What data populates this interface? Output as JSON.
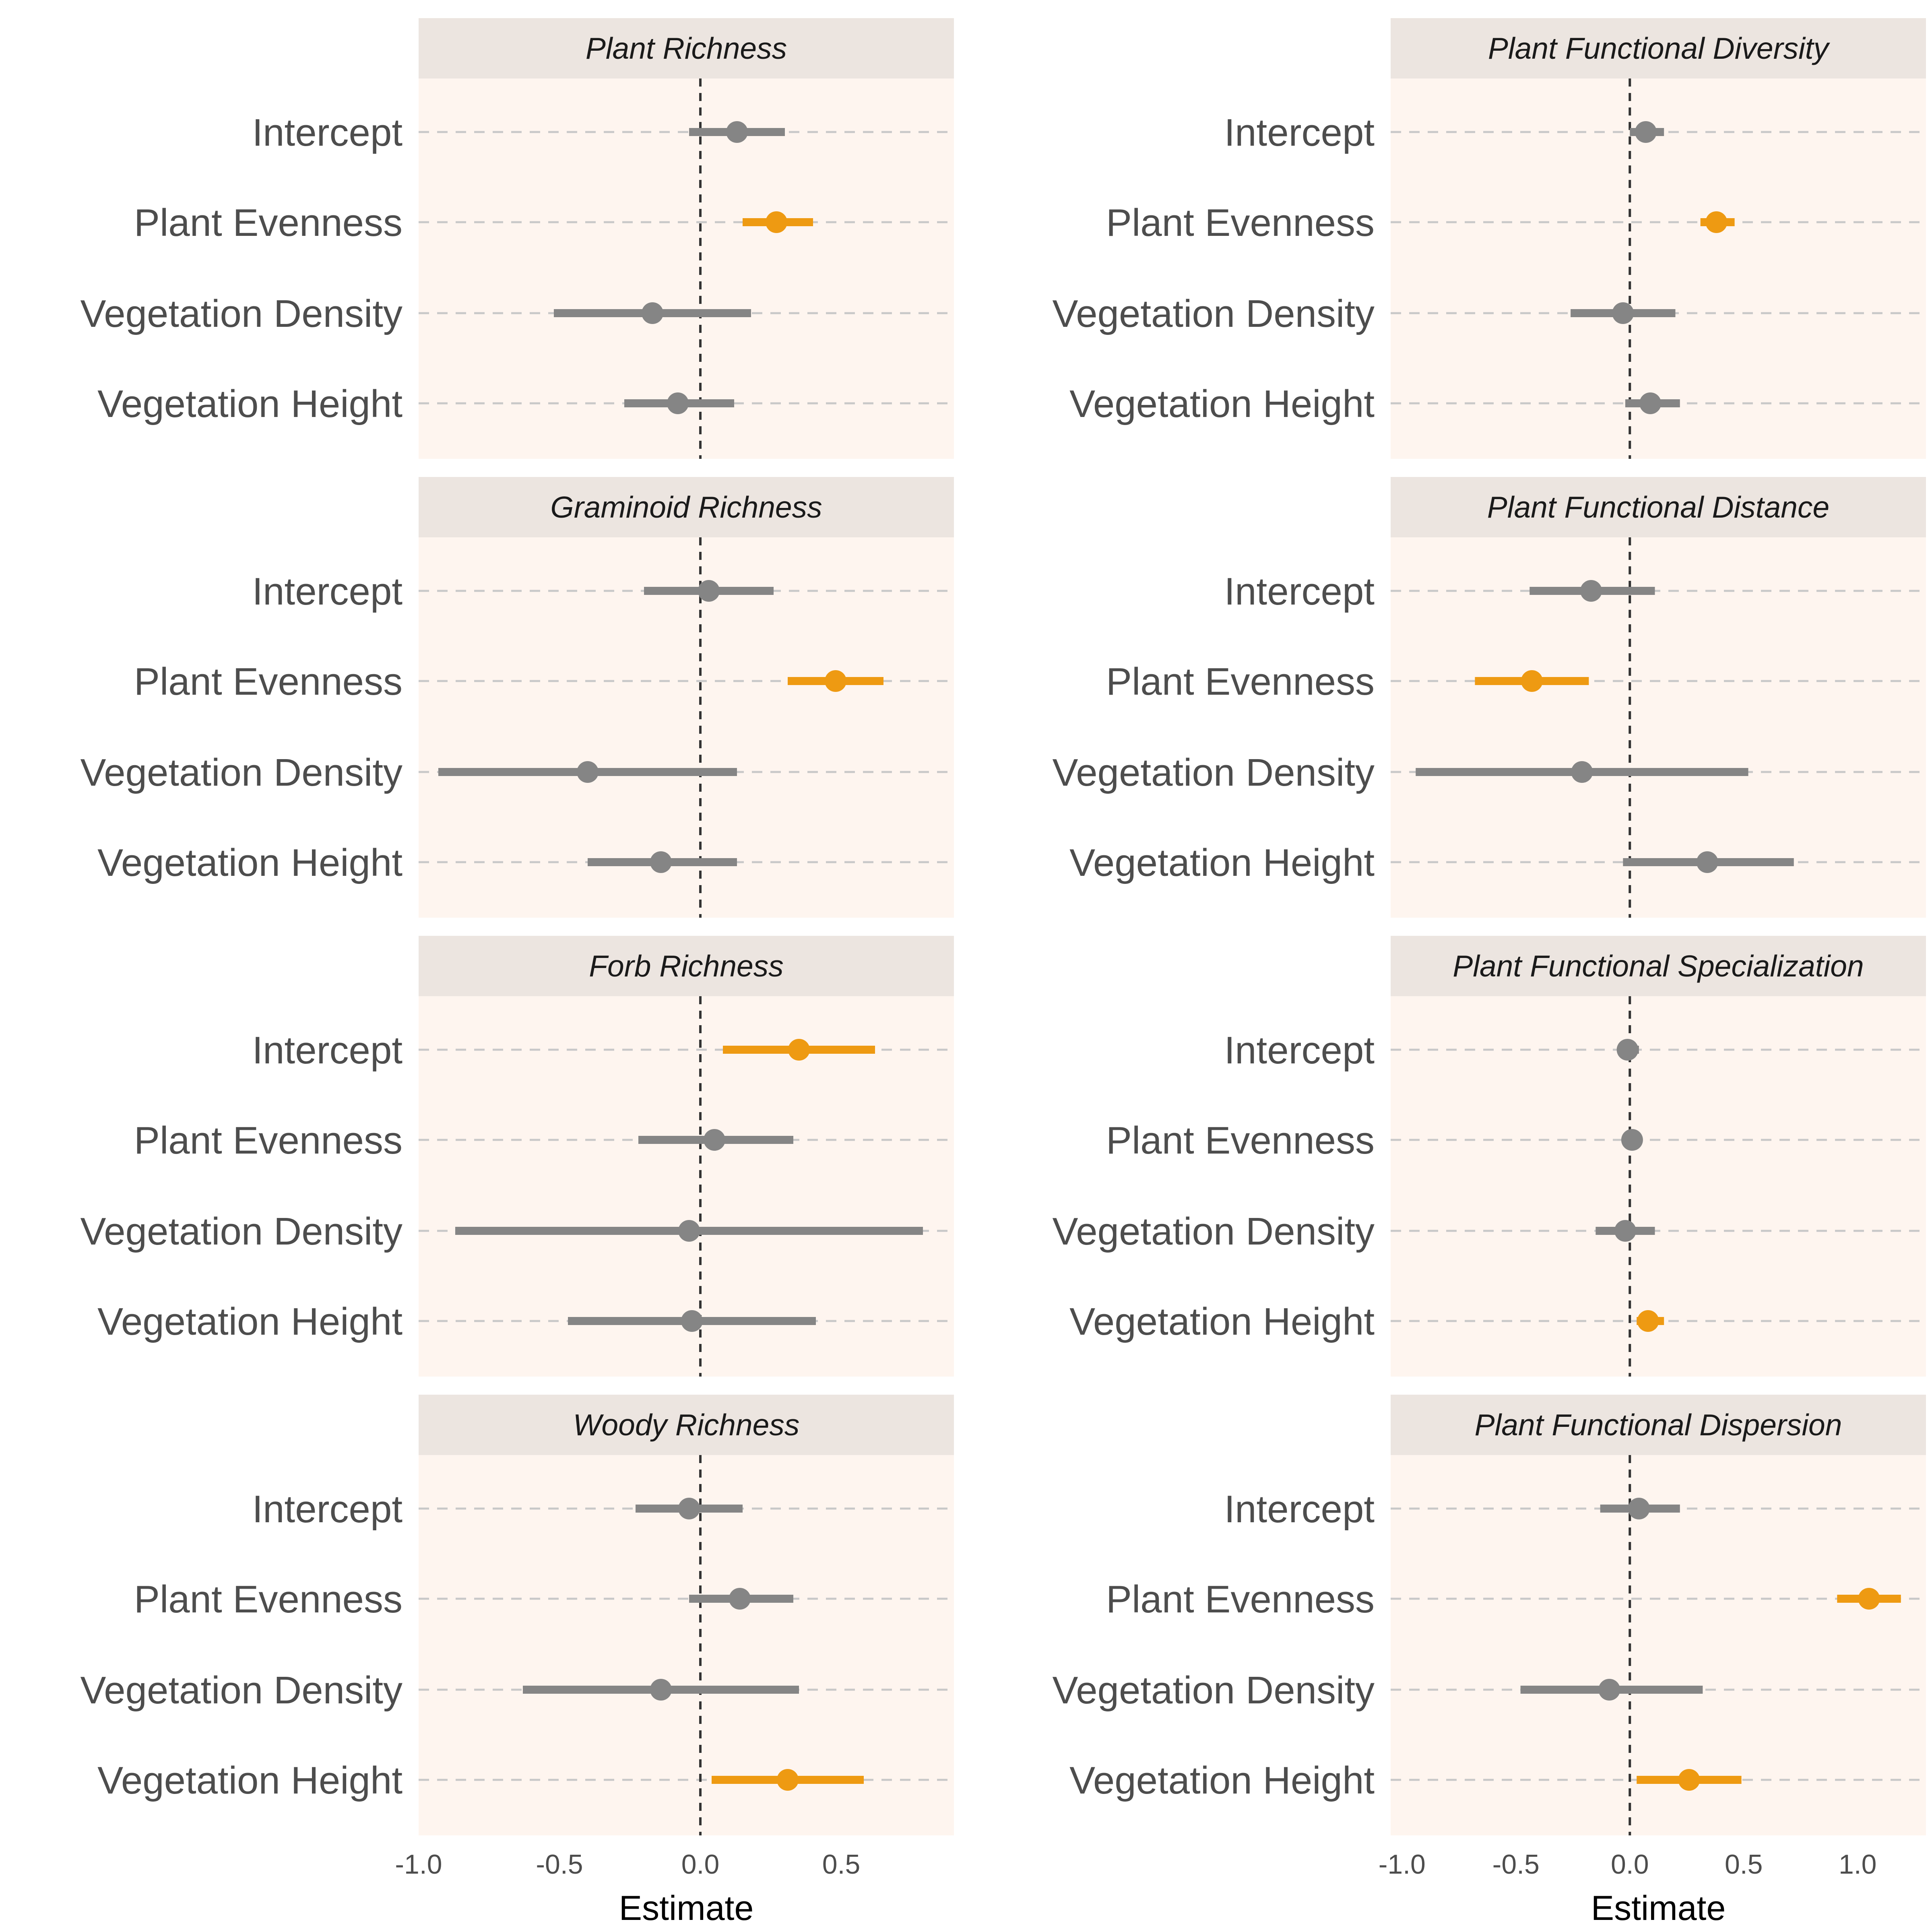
{
  "colors": {
    "panel_bg": "#FEF5EF",
    "strip_bg": "#ECE5E0",
    "nonsignificant": "#858585",
    "significant": "#EE9A12",
    "gridline": "#C8C8C8",
    "zero_line": "#333333"
  },
  "chart_data": {
    "type": "forest",
    "xlabel": "Estimate",
    "terms": [
      "Intercept",
      "Plant Evenness",
      "Vegetation Density",
      "Vegetation Height"
    ],
    "columns": [
      {
        "xlim": [
          -1.0,
          0.9
        ],
        "xticks": [
          -1.0,
          -0.5,
          0.0,
          0.5
        ],
        "xtick_labels": [
          "-1.0",
          "-0.5",
          "0.0",
          "0.5"
        ],
        "panels": [
          {
            "title": "Plant Richness",
            "rows": [
              {
                "term": "Intercept",
                "estimate": 0.13,
                "lower": -0.04,
                "upper": 0.3,
                "significant": false
              },
              {
                "term": "Plant Evenness",
                "estimate": 0.27,
                "lower": 0.15,
                "upper": 0.4,
                "significant": true
              },
              {
                "term": "Vegetation Density",
                "estimate": -0.17,
                "lower": -0.52,
                "upper": 0.18,
                "significant": false
              },
              {
                "term": "Vegetation Height",
                "estimate": -0.08,
                "lower": -0.27,
                "upper": 0.12,
                "significant": false
              }
            ]
          },
          {
            "title": "Graminoid Richness",
            "rows": [
              {
                "term": "Intercept",
                "estimate": 0.03,
                "lower": -0.2,
                "upper": 0.26,
                "significant": false
              },
              {
                "term": "Plant Evenness",
                "estimate": 0.48,
                "lower": 0.31,
                "upper": 0.65,
                "significant": true
              },
              {
                "term": "Vegetation Density",
                "estimate": -0.4,
                "lower": -0.93,
                "upper": 0.13,
                "significant": false
              },
              {
                "term": "Vegetation Height",
                "estimate": -0.14,
                "lower": -0.4,
                "upper": 0.13,
                "significant": false
              }
            ]
          },
          {
            "title": "Forb Richness",
            "rows": [
              {
                "term": "Intercept",
                "estimate": 0.35,
                "lower": 0.08,
                "upper": 0.62,
                "significant": true
              },
              {
                "term": "Plant Evenness",
                "estimate": 0.05,
                "lower": -0.22,
                "upper": 0.33,
                "significant": false
              },
              {
                "term": "Vegetation Density",
                "estimate": -0.04,
                "lower": -0.87,
                "upper": 0.79,
                "significant": false
              },
              {
                "term": "Vegetation Height",
                "estimate": -0.03,
                "lower": -0.47,
                "upper": 0.41,
                "significant": false
              }
            ]
          },
          {
            "title": "Woody Richness",
            "rows": [
              {
                "term": "Intercept",
                "estimate": -0.04,
                "lower": -0.23,
                "upper": 0.15,
                "significant": false
              },
              {
                "term": "Plant Evenness",
                "estimate": 0.14,
                "lower": -0.04,
                "upper": 0.33,
                "significant": false
              },
              {
                "term": "Vegetation Density",
                "estimate": -0.14,
                "lower": -0.63,
                "upper": 0.35,
                "significant": false
              },
              {
                "term": "Vegetation Height",
                "estimate": 0.31,
                "lower": 0.04,
                "upper": 0.58,
                "significant": true
              }
            ]
          }
        ]
      },
      {
        "xlim": [
          -1.05,
          1.3
        ],
        "xticks": [
          -1.0,
          -0.5,
          0.0,
          0.5,
          1.0
        ],
        "xtick_labels": [
          "-1.0",
          "-0.5",
          "0.0",
          "0.5",
          "1.0"
        ],
        "panels": [
          {
            "title": "Plant Functional Diversity",
            "rows": [
              {
                "term": "Intercept",
                "estimate": 0.07,
                "lower": 0.0,
                "upper": 0.15,
                "significant": false
              },
              {
                "term": "Plant Evenness",
                "estimate": 0.38,
                "lower": 0.31,
                "upper": 0.46,
                "significant": true
              },
              {
                "term": "Vegetation Density",
                "estimate": -0.03,
                "lower": -0.26,
                "upper": 0.2,
                "significant": false
              },
              {
                "term": "Vegetation Height",
                "estimate": 0.09,
                "lower": -0.02,
                "upper": 0.22,
                "significant": false
              }
            ]
          },
          {
            "title": "Plant Functional Distance",
            "rows": [
              {
                "term": "Intercept",
                "estimate": -0.17,
                "lower": -0.44,
                "upper": 0.11,
                "significant": false
              },
              {
                "term": "Plant Evenness",
                "estimate": -0.43,
                "lower": -0.68,
                "upper": -0.18,
                "significant": true
              },
              {
                "term": "Vegetation Density",
                "estimate": -0.21,
                "lower": -0.94,
                "upper": 0.52,
                "significant": false
              },
              {
                "term": "Vegetation Height",
                "estimate": 0.34,
                "lower": -0.03,
                "upper": 0.72,
                "significant": false
              }
            ]
          },
          {
            "title": "Plant Functional Specialization",
            "rows": [
              {
                "term": "Intercept",
                "estimate": -0.01,
                "lower": -0.04,
                "upper": 0.04,
                "significant": false
              },
              {
                "term": "Plant Evenness",
                "estimate": 0.01,
                "lower": -0.01,
                "upper": 0.03,
                "significant": false
              },
              {
                "term": "Vegetation Density",
                "estimate": -0.02,
                "lower": -0.15,
                "upper": 0.11,
                "significant": false
              },
              {
                "term": "Vegetation Height",
                "estimate": 0.08,
                "lower": 0.03,
                "upper": 0.15,
                "significant": true
              }
            ]
          },
          {
            "title": "Plant Functional Dispersion",
            "rows": [
              {
                "term": "Intercept",
                "estimate": 0.04,
                "lower": -0.13,
                "upper": 0.22,
                "significant": false
              },
              {
                "term": "Plant Evenness",
                "estimate": 1.05,
                "lower": 0.91,
                "upper": 1.19,
                "significant": true
              },
              {
                "term": "Vegetation Density",
                "estimate": -0.09,
                "lower": -0.48,
                "upper": 0.32,
                "significant": false
              },
              {
                "term": "Vegetation Height",
                "estimate": 0.26,
                "lower": 0.03,
                "upper": 0.49,
                "significant": true
              }
            ]
          }
        ]
      }
    ]
  }
}
